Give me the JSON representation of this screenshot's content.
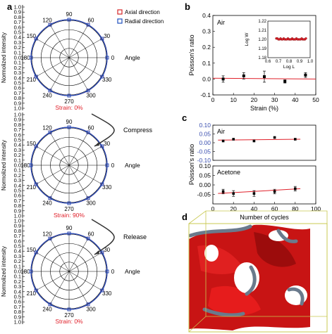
{
  "panel_labels": {
    "a": "a",
    "b": "b",
    "c": "c",
    "d": "d"
  },
  "colors": {
    "axial": "#d62728",
    "radial": "#1f4fbf",
    "strain_text": "#e0202a",
    "fit_line": "#e0202a",
    "axis_blue": "#3a4fb0",
    "arrow": "#333333",
    "foam_red": "#d01818",
    "box_yellow": "#c8c850"
  },
  "panel_a": {
    "ylabel": "Normolized intensity",
    "angle_label": "Angle",
    "legend": [
      {
        "key": "axial",
        "label": "Axial direction"
      },
      {
        "key": "radial",
        "label": "Radial direction"
      }
    ],
    "y_ticks": [
      "1.0",
      "0.9",
      "0.8",
      "0.7",
      "0.6",
      "0.5",
      "0.4",
      "0.3",
      "0.2",
      "0.1",
      "0.0",
      "0.1",
      "0.2",
      "0.3",
      "0.4",
      "0.5",
      "0.6",
      "0.7",
      "0.8",
      "0.9",
      "1.0"
    ],
    "angle_ticks": [
      "0",
      "30",
      "60",
      "90",
      "120",
      "150",
      "180",
      "210",
      "240",
      "270",
      "300",
      "330"
    ],
    "plots": [
      {
        "strain": "Strain: 0%",
        "axial_r": [
          0.97,
          0.98,
          0.99,
          0.97,
          0.98,
          0.99,
          0.97,
          0.98,
          0.99,
          0.97,
          0.98,
          0.99
        ],
        "radial_r": [
          0.95,
          0.96,
          0.97,
          0.95,
          0.96,
          0.97,
          0.95,
          0.96,
          0.97,
          0.95,
          0.96,
          0.97
        ]
      },
      {
        "strain": "Strain: 90%",
        "axial_r": [
          0.96,
          0.97,
          0.98,
          0.96,
          0.97,
          0.98,
          0.96,
          0.97,
          0.98,
          0.96,
          0.97,
          0.98
        ],
        "radial_r": [
          0.94,
          0.95,
          0.96,
          0.94,
          0.95,
          0.96,
          0.94,
          0.95,
          0.96,
          0.94,
          0.95,
          0.96
        ]
      },
      {
        "strain": "Strain: 0%",
        "axial_r": [
          0.97,
          0.98,
          0.99,
          0.97,
          0.98,
          0.99,
          0.97,
          0.98,
          0.99,
          0.97,
          0.98,
          0.99
        ],
        "radial_r": [
          0.95,
          0.96,
          0.97,
          0.95,
          0.96,
          0.97,
          0.95,
          0.96,
          0.97,
          0.95,
          0.96,
          0.97
        ]
      }
    ],
    "arrows": [
      "Compress",
      "Release"
    ]
  },
  "chart_data": [
    {
      "type": "scatter",
      "panel": "b",
      "annotation": "Air",
      "xlabel": "Strain (%)",
      "ylabel": "Poisson's ratio",
      "xlim": [
        0,
        50
      ],
      "ylim": [
        -0.1,
        0.4
      ],
      "x_ticks": [
        "0",
        "10",
        "20",
        "30",
        "40",
        "50"
      ],
      "y_ticks": [
        "-0.1",
        "0.0",
        "0.1",
        "0.2",
        "0.3",
        "0.4"
      ],
      "x": [
        5,
        15,
        25,
        35,
        45
      ],
      "values": [
        0.0,
        0.02,
        0.015,
        -0.015,
        0.025
      ],
      "errors": [
        0.02,
        0.02,
        0.035,
        0.01,
        0.015
      ],
      "fit": {
        "x": [
          0,
          50
        ],
        "y": [
          0.005,
          0.0
        ]
      },
      "inset": {
        "xlabel": "Log L",
        "ylabel": "Log W",
        "xlim": [
          0.6,
          1.0
        ],
        "ylim": [
          1.18,
          1.22
        ],
        "x_ticks": [
          "0.6",
          "0.7",
          "0.8",
          "0.9",
          "1.0"
        ],
        "y_ticks": [
          "1.18",
          "1.19",
          "1.20",
          "1.21",
          "1.22"
        ],
        "x": [
          0.68,
          0.69,
          0.7,
          0.71,
          0.72,
          0.73,
          0.74,
          0.75,
          0.76,
          0.77,
          0.78,
          0.79,
          0.8,
          0.81,
          0.82,
          0.83,
          0.84,
          0.85,
          0.86,
          0.87,
          0.88,
          0.89,
          0.9,
          0.91,
          0.92,
          0.93,
          0.94,
          0.95,
          0.96
        ],
        "values": [
          1.201,
          1.201,
          1.2,
          1.2,
          1.201,
          1.2,
          1.2,
          1.201,
          1.2,
          1.2,
          1.2,
          1.201,
          1.2,
          1.2,
          1.2,
          1.201,
          1.2,
          1.2,
          1.2,
          1.201,
          1.2,
          1.2,
          1.2,
          1.2,
          1.201,
          1.2,
          1.2,
          1.2,
          1.201
        ]
      }
    },
    {
      "type": "scatter",
      "panel": "c",
      "annotation": "Air",
      "ylabel": "Poisson's ratio",
      "xlim": [
        0,
        100
      ],
      "ylim": [
        -0.1,
        0.1
      ],
      "y_ticks": [
        "0.10",
        "0.05",
        "0.00",
        "-0.05",
        "-0.10"
      ],
      "x": [
        10,
        20,
        40,
        60,
        80
      ],
      "values": [
        0.01,
        0.02,
        0.01,
        0.03,
        0.02
      ],
      "fit": {
        "x": [
          5,
          85
        ],
        "y": [
          0.015,
          0.02
        ]
      }
    },
    {
      "type": "scatter",
      "panel": "c",
      "annotation": "Acetone",
      "xlabel": "Number of cycles",
      "xlim": [
        0,
        100
      ],
      "ylim": [
        -0.1,
        0.1
      ],
      "x_ticks": [
        "0",
        "20",
        "40",
        "60",
        "80",
        "100"
      ],
      "y_ticks": [
        "0.10",
        "0.05",
        "0.00",
        "-0.05"
      ],
      "x": [
        10,
        20,
        40,
        60,
        80
      ],
      "values": [
        -0.035,
        -0.045,
        -0.045,
        -0.035,
        -0.02
      ],
      "errors": [
        0.012,
        0.015,
        0.015,
        0.012,
        0.012
      ],
      "fit": {
        "x": [
          5,
          85
        ],
        "y": [
          -0.045,
          -0.02
        ]
      }
    }
  ]
}
